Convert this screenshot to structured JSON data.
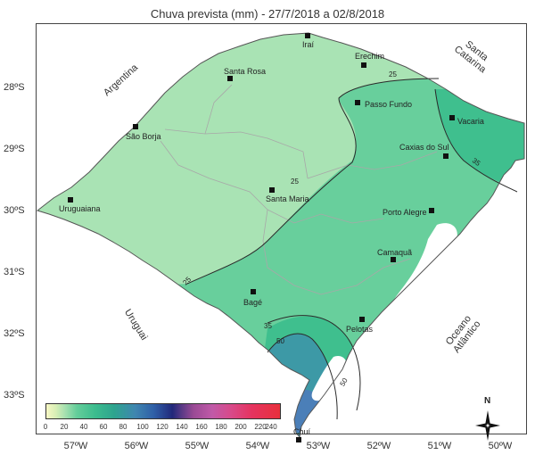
{
  "title": "Chuva prevista (mm) - 27/7/2018 a 02/8/2018",
  "latitudes": [
    "28ºS",
    "29ºS",
    "30ºS",
    "31ºS",
    "32ºS",
    "33ºS"
  ],
  "longitudes": [
    "57ºW",
    "56ºW",
    "55ºW",
    "54ºW",
    "53ºW",
    "52ºW",
    "51ºW",
    "50ºW"
  ],
  "regions": {
    "argentina": "Argentina",
    "santa_catarina": "Santa\nCatarina",
    "uruguai": "Uruguai",
    "oceano": "Oceano\nAtlântico"
  },
  "cities": {
    "irai": "Iraí",
    "erechim": "Erechim",
    "santa_rosa": "Santa Rosa",
    "passo_fundo": "Passo Fundo",
    "vacaria": "Vacaria",
    "sao_borja": "São Borja",
    "caxias": "Caxias do Sul",
    "uruguaiana": "Uruguaiana",
    "santa_maria": "Santa Maria",
    "porto_alegre": "Porto Alegre",
    "camaqua": "Camaquã",
    "bage": "Bagé",
    "pelotas": "Pelotas",
    "chui": "Chuí"
  },
  "contours": [
    "25",
    "25",
    "25",
    "35",
    "35",
    "50",
    "50"
  ],
  "legend": {
    "ticks": [
      "0",
      "20",
      "40",
      "60",
      "80",
      "100",
      "120",
      "140",
      "160",
      "180",
      "200",
      "220",
      "240"
    ],
    "colors": {
      "low": "#f7f7c4",
      "light": "#a6e0b0",
      "mid": "#3cbc8e",
      "blue": "#2f5fa7",
      "navy": "#22287a",
      "purple": "#9a4a95",
      "red": "#e8303c"
    }
  },
  "compass": {
    "north": "N"
  }
}
